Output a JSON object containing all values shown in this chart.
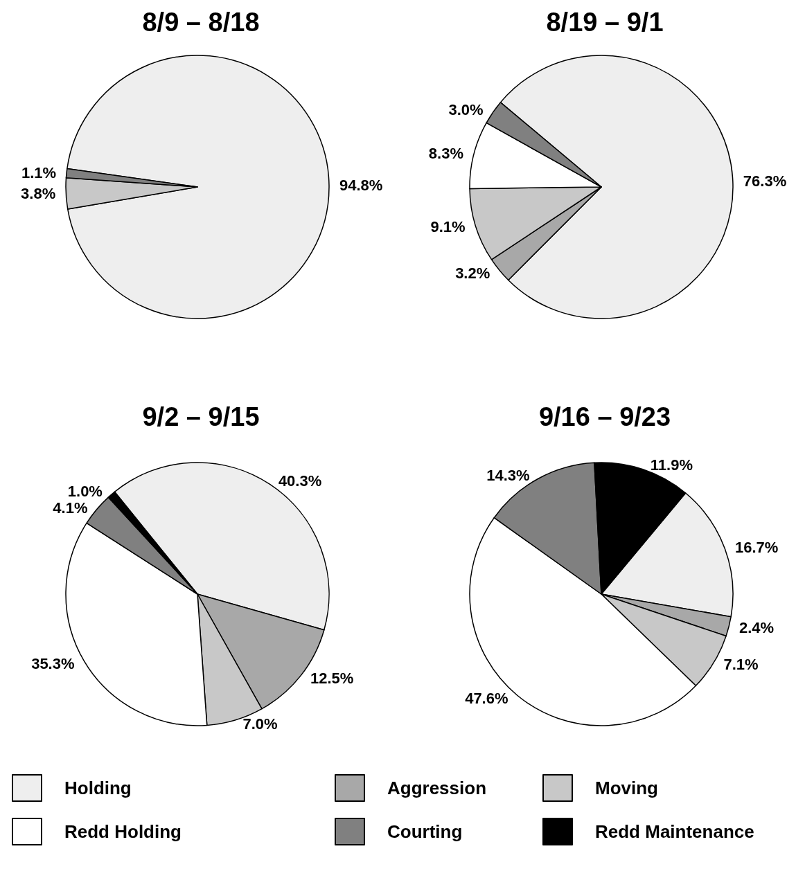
{
  "chart_data": [
    {
      "type": "pie",
      "title": "8/9 – 8/18",
      "categories": [
        null,
        null,
        null
      ],
      "values": [
        94.8,
        3.8,
        1.1
      ],
      "value_labels": [
        "94.8%",
        "3.8%",
        "1.1%"
      ],
      "colors": [
        "#eeeeee",
        "#c8c8c8",
        "#808080"
      ]
    },
    {
      "type": "pie",
      "title": "8/19 – 9/1",
      "categories": [
        null,
        null,
        null,
        null,
        null
      ],
      "values": [
        76.3,
        3.2,
        9.1,
        8.3,
        3.0
      ],
      "value_labels": [
        "76.3%",
        "3.2%",
        "9.1%",
        "8.3%",
        "3.0%"
      ],
      "colors": [
        "#eeeeee",
        "#a8a8a8",
        "#c8c8c8",
        "#ffffff",
        "#808080"
      ]
    },
    {
      "type": "pie",
      "title": "9/2 – 9/15",
      "categories": [
        null,
        null,
        null,
        null,
        null,
        null
      ],
      "values": [
        40.3,
        12.5,
        7.0,
        35.3,
        4.1,
        1.0
      ],
      "value_labels": [
        "40.3%",
        "12.5%",
        "7.0%",
        "35.3%",
        "4.1%",
        "1.0%"
      ],
      "colors": [
        "#eeeeee",
        "#a8a8a8",
        "#c8c8c8",
        "#ffffff",
        "#808080",
        "#000000"
      ]
    },
    {
      "type": "pie",
      "title": "9/16 – 9/23",
      "categories": [
        "Holding",
        "Aggression",
        "Moving",
        "Redd Holding",
        "Courting",
        "Redd Maintenance"
      ],
      "values": [
        16.7,
        2.4,
        7.1,
        47.6,
        14.3,
        11.9
      ],
      "value_labels": [
        "16.7%",
        "2.4%",
        "7.1%",
        "47.6%",
        "14.3%",
        "11.9%"
      ],
      "colors": [
        "#eeeeee",
        "#a8a8a8",
        "#c8c8c8",
        "#ffffff",
        "#808080",
        "#000000"
      ],
      "legend": "bottom"
    }
  ]
}
